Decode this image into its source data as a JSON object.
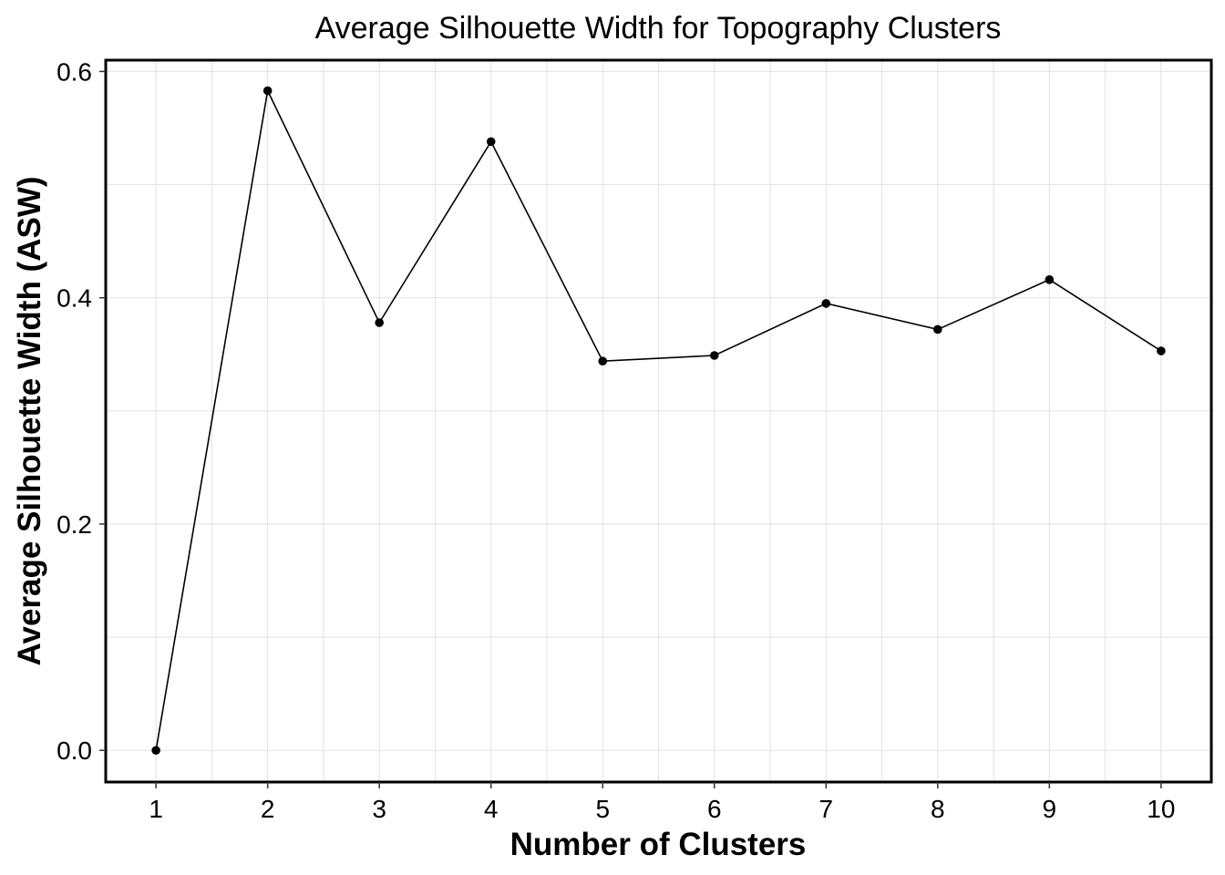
{
  "chart_data": {
    "type": "line",
    "title": "Average Silhouette Width for Topography Clusters",
    "xlabel": "Number of Clusters",
    "ylabel": "Average Silhouette Width (ASW)",
    "x": [
      1,
      2,
      3,
      4,
      5,
      6,
      7,
      8,
      9,
      10
    ],
    "x_tick_labels": [
      "1",
      "2",
      "3",
      "4",
      "5",
      "6",
      "7",
      "8",
      "9",
      "10"
    ],
    "y_ticks": [
      0.0,
      0.2,
      0.4,
      0.6
    ],
    "y_tick_labels": [
      "0.0",
      "0.2",
      "0.4",
      "0.6"
    ],
    "series": [
      {
        "values": [
          0.0,
          0.583,
          0.378,
          0.538,
          0.344,
          0.349,
          0.395,
          0.372,
          0.416,
          0.353
        ]
      }
    ],
    "xlim": [
      0.55,
      10.45
    ],
    "ylim": [
      -0.028,
      0.61
    ],
    "grid": true,
    "line_color": "#000000",
    "point_color": "#000000"
  }
}
